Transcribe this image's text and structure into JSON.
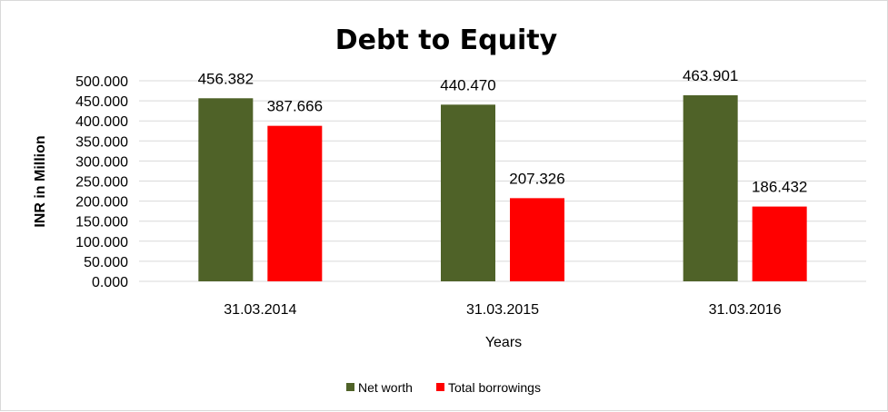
{
  "chart_data": {
    "type": "bar",
    "title": "Debt to Equity",
    "xlabel": "Years",
    "ylabel": "INR in Million",
    "categories": [
      "31.03.2014",
      "31.03.2015",
      "31.03.2016"
    ],
    "series": [
      {
        "name": "Net worth",
        "color": "#4f6228",
        "values": [
          456.382,
          440.47,
          463.901
        ],
        "labels": [
          "456.382",
          "440.470",
          "463.901"
        ]
      },
      {
        "name": "Total borrowings",
        "color": "#ff0000",
        "values": [
          387.666,
          207.326,
          186.432
        ],
        "labels": [
          "387.666",
          "207.326",
          "186.432"
        ]
      }
    ],
    "ylim": [
      0,
      500
    ],
    "yticks": [
      0,
      50,
      100,
      150,
      200,
      250,
      300,
      350,
      400,
      450,
      500
    ],
    "ytick_labels": [
      "0.000",
      "50.000",
      "100.000",
      "150.000",
      "200.000",
      "250.000",
      "300.000",
      "350.000",
      "400.000",
      "450.000",
      "500.000"
    ],
    "grid": true,
    "legend_position": "bottom"
  }
}
